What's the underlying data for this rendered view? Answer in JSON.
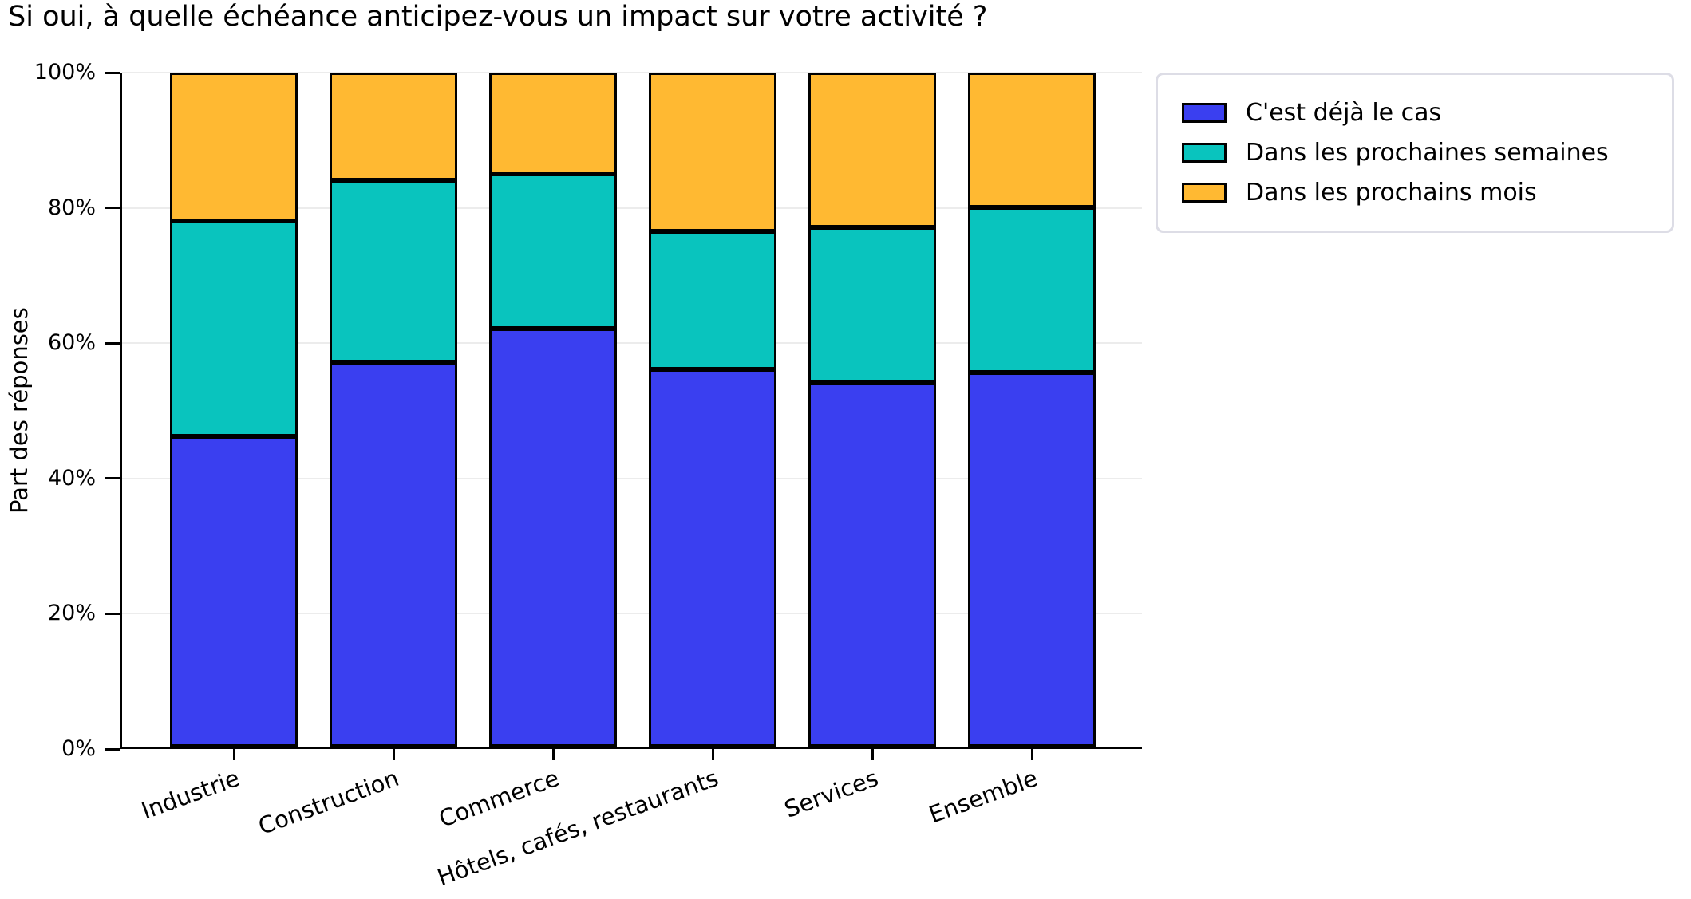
{
  "chart_data": {
    "type": "bar",
    "stacked": true,
    "percent": true,
    "title": "Si oui, à quelle échéance anticipez-vous un impact sur votre activité ?",
    "ylabel": "Part des réponses",
    "categories": [
      "Industrie",
      "Construction",
      "Commerce",
      "Hôtels, cafés, restaurants",
      "Services",
      "Ensemble"
    ],
    "series": [
      {
        "name": "C'est déjà le cas",
        "color": "#3a3ff0",
        "values": [
          46,
          57,
          62,
          56,
          54,
          55.5
        ]
      },
      {
        "name": "Dans les prochaines semaines",
        "color": "#09c4be",
        "values": [
          32,
          27,
          23,
          20.5,
          23,
          24.5
        ]
      },
      {
        "name": "Dans les prochains mois",
        "color": "#ffb932",
        "values": [
          22,
          16,
          15,
          23.5,
          23,
          20
        ]
      }
    ],
    "ytick_labels": [
      "0%",
      "20%",
      "40%",
      "60%",
      "80%",
      "100%"
    ],
    "ytick_values": [
      0,
      20,
      40,
      60,
      80,
      100
    ],
    "ylim": [
      0,
      100
    ],
    "grid": true,
    "edge_color": "#000000",
    "legend_position": "upper right"
  }
}
